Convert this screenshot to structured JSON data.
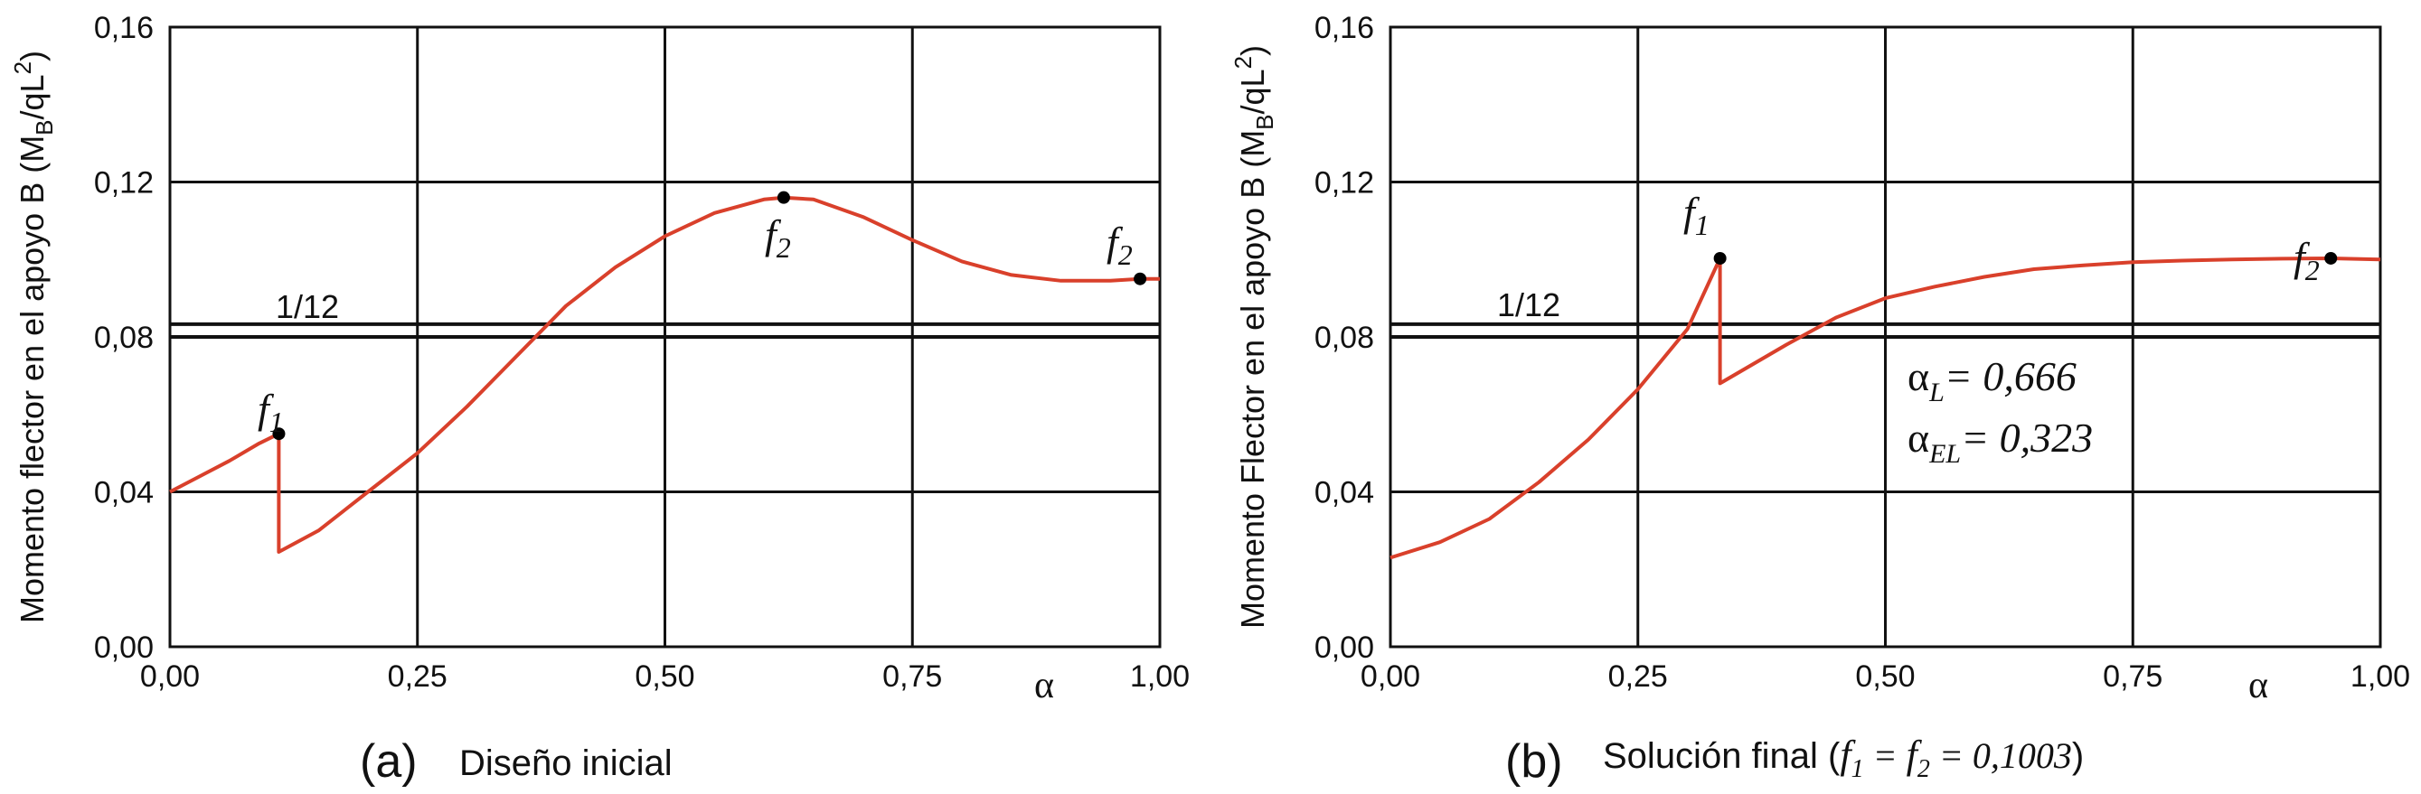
{
  "chart_data": [
    {
      "type": "line",
      "ylabel": "Momento flector en el apoyo B (M_B/qL^2)",
      "ylabel_main": "Momento flector en el apoyo B (M",
      "ylabel_sub": "B",
      "ylabel_mid": "/qL",
      "ylabel_sup": "2",
      "ylabel_end": ")",
      "xlabel": "α",
      "caption_letter": "(a)",
      "caption_text": "Diseño inicial",
      "xlim": [
        0,
        1
      ],
      "ylim": [
        0,
        0.16
      ],
      "xticks": [
        "0,00",
        "0,25",
        "0,50",
        "0,75",
        "1,00"
      ],
      "yticks": [
        "0,00",
        "0,04",
        "0,08",
        "0,12",
        "0,16"
      ],
      "grid": true,
      "reference_lines": [
        {
          "label": "1/12",
          "y": 0.0833
        },
        {
          "y": 0.08
        }
      ],
      "series": [
        {
          "color": "#d9402b",
          "x": [
            0.0,
            0.03,
            0.06,
            0.09,
            0.11,
            0.11,
            0.15,
            0.2,
            0.25,
            0.3,
            0.35,
            0.4,
            0.45,
            0.5,
            0.55,
            0.6,
            0.62,
            0.65,
            0.7,
            0.75,
            0.8,
            0.85,
            0.9,
            0.95,
            0.98,
            1.0
          ],
          "y": [
            0.04,
            0.044,
            0.048,
            0.0525,
            0.055,
            0.0245,
            0.03,
            0.04,
            0.05,
            0.062,
            0.075,
            0.088,
            0.098,
            0.106,
            0.112,
            0.1155,
            0.116,
            0.1155,
            0.111,
            0.105,
            0.0995,
            0.096,
            0.0945,
            0.0945,
            0.095,
            0.095
          ]
        }
      ],
      "annotations": [
        {
          "text": "f",
          "sub": "1",
          "x": 0.11,
          "y": 0.055
        },
        {
          "text": "f",
          "sub": "2",
          "x": 0.62,
          "y": 0.116
        },
        {
          "text": "f",
          "sub": "2",
          "x": 0.98,
          "y": 0.095
        }
      ]
    },
    {
      "type": "line",
      "ylabel": "Momento Flector en el apoyo B (M_B/qL^2)",
      "ylabel_main": "Momento Flector en el apoyo B (M",
      "ylabel_sub": "B",
      "ylabel_mid": "/qL",
      "ylabel_sup": "2",
      "ylabel_end": ")",
      "xlabel": "α",
      "caption_letter": "(b)",
      "caption_text": "Solución final (",
      "caption_f1": "f",
      "caption_f1_sub": "1",
      "caption_eq": " = ",
      "caption_f2": "f",
      "caption_f2_sub": "2",
      "caption_value": " = 0,1003",
      "caption_close": ")",
      "xlim": [
        0,
        1
      ],
      "ylim": [
        0,
        0.16
      ],
      "xticks": [
        "0,00",
        "0,25",
        "0,50",
        "0,75",
        "1,00"
      ],
      "yticks": [
        "0,00",
        "0,04",
        "0,08",
        "0,12",
        "0,16"
      ],
      "grid": true,
      "reference_lines": [
        {
          "label": "1/12",
          "y": 0.0833
        },
        {
          "y": 0.08
        }
      ],
      "series": [
        {
          "color": "#d9402b",
          "x": [
            0.0,
            0.05,
            0.1,
            0.15,
            0.2,
            0.25,
            0.3,
            0.333,
            0.333,
            0.4,
            0.45,
            0.5,
            0.55,
            0.6,
            0.65,
            0.7,
            0.75,
            0.8,
            0.85,
            0.9,
            0.95,
            1.0
          ],
          "y": [
            0.023,
            0.027,
            0.033,
            0.0425,
            0.0535,
            0.0665,
            0.082,
            0.1003,
            0.068,
            0.078,
            0.085,
            0.09,
            0.093,
            0.0955,
            0.0975,
            0.0985,
            0.0993,
            0.0997,
            0.1,
            0.1002,
            0.1003,
            0.1
          ]
        }
      ],
      "annotations": [
        {
          "text": "f",
          "sub": "1",
          "x": 0.333,
          "y": 0.1003
        },
        {
          "text": "f",
          "sub": "2",
          "x": 0.95,
          "y": 0.1003
        }
      ],
      "text_annotations": [
        {
          "prefix": "α",
          "sub": "L",
          "value": "= 0,666"
        },
        {
          "prefix": "α",
          "sub": "EL",
          "value": "= 0,323"
        }
      ]
    }
  ]
}
